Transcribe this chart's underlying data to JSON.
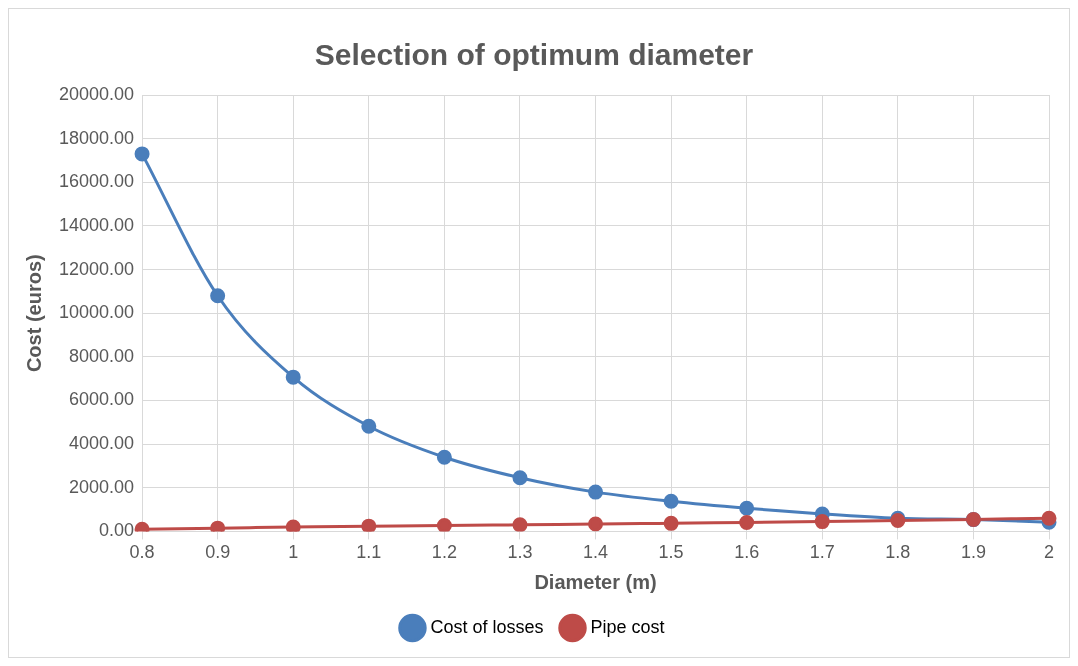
{
  "chart_data": {
    "type": "line",
    "title": "Selection of optimum diameter",
    "xlabel": "Diameter (m)",
    "ylabel": "Cost (euros)",
    "categories": [
      "0.8",
      "0.9",
      "1",
      "1.1",
      "1.2",
      "1.3",
      "1.4",
      "1.5",
      "1.6",
      "1.7",
      "1.8",
      "1.9",
      "2"
    ],
    "series": [
      {
        "name": "Cost of losses",
        "color": "#4a7ebb",
        "values": [
          17300,
          10800,
          7070,
          4820,
          3400,
          2460,
          1800,
          1380,
          1060,
          800,
          600,
          540,
          420
        ]
      },
      {
        "name": "Pipe cost",
        "color": "#be4b48",
        "values": [
          100,
          150,
          200,
          240,
          270,
          300,
          340,
          370,
          410,
          450,
          500,
          550,
          600
        ]
      }
    ],
    "ylim": [
      0,
      20000
    ],
    "yticks": [
      {
        "value": 0,
        "label": "0.00"
      },
      {
        "value": 2000,
        "label": "2000.00"
      },
      {
        "value": 4000,
        "label": "4000.00"
      },
      {
        "value": 6000,
        "label": "6000.00"
      },
      {
        "value": 8000,
        "label": "8000.00"
      },
      {
        "value": 10000,
        "label": "10000.00"
      },
      {
        "value": 12000,
        "label": "12000.00"
      },
      {
        "value": 14000,
        "label": "14000.00"
      },
      {
        "value": 16000,
        "label": "16000.00"
      },
      {
        "value": 18000,
        "label": "18000.00"
      },
      {
        "value": 20000,
        "label": "20000.00"
      }
    ],
    "grid": true,
    "legend": "bottom",
    "marker": "circle",
    "line_style": "solid"
  }
}
